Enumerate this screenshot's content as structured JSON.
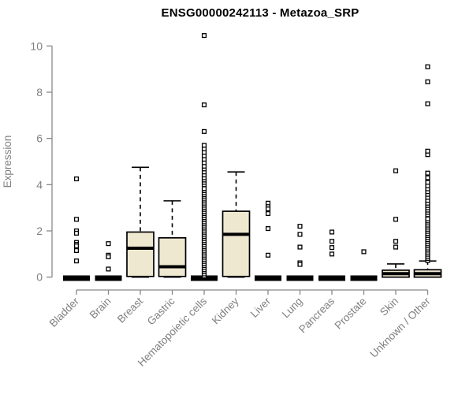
{
  "title": "ENSG00000242113 - Metazoa_SRP",
  "colors": {
    "background": "#ffffff",
    "box_fill": "#efe8d1",
    "box_stroke": "#000000",
    "median": "#000000",
    "axis": "#888888",
    "tick_label": "#808080",
    "title": "#000000"
  },
  "chart_data": {
    "type": "boxplot",
    "title": "ENSG00000242113 - Metazoa_SRP",
    "ylabel": "Expression",
    "xlabel": "",
    "ylim": [
      0,
      10
    ],
    "yticks": [
      0,
      2,
      4,
      6,
      8,
      10
    ],
    "grid": false,
    "legend": false,
    "marker": "open-square",
    "categories": [
      "Bladder",
      "Brain",
      "Breast",
      "Gastric",
      "Hematopoietic cells",
      "Kidney",
      "Liver",
      "Lung",
      "Pancreas",
      "Prostate",
      "Skin",
      "Unknown / Other"
    ],
    "series": [
      {
        "name": "Bladder",
        "collapsed": true,
        "q1": 0,
        "median": 0,
        "q3": 0,
        "whisker_low": 0,
        "whisker_high": 0,
        "outliers": [
          4.25,
          2.5,
          2.0,
          1.9,
          1.5,
          1.42,
          1.35,
          1.15,
          0.7
        ],
        "outlier_dense_range": null
      },
      {
        "name": "Brain",
        "collapsed": true,
        "q1": 0,
        "median": 0,
        "q3": 0,
        "whisker_low": 0,
        "whisker_high": 0,
        "outliers": [
          1.45,
          0.95,
          0.88,
          0.35
        ],
        "outlier_dense_range": null
      },
      {
        "name": "Breast",
        "collapsed": false,
        "q1": 0.03,
        "median": 1.25,
        "q3": 1.95,
        "whisker_low": 0,
        "whisker_high": 4.75,
        "outliers": [],
        "outlier_dense_range": null
      },
      {
        "name": "Gastric",
        "collapsed": false,
        "q1": 0.03,
        "median": 0.45,
        "q3": 1.7,
        "whisker_low": 0,
        "whisker_high": 3.3,
        "outliers": [],
        "outlier_dense_range": null
      },
      {
        "name": "Hematopoietic cells",
        "collapsed": true,
        "q1": 0,
        "median": 0,
        "q3": 0,
        "whisker_low": 0,
        "whisker_high": 0,
        "outliers": [
          4.0,
          4.1,
          4.2,
          4.3,
          4.42,
          4.55,
          4.68,
          4.8,
          4.95,
          5.1,
          5.25,
          5.4,
          5.55,
          5.7,
          6.3,
          7.45,
          10.45
        ],
        "outlier_dense_range": [
          0.05,
          3.9
        ]
      },
      {
        "name": "Kidney",
        "collapsed": false,
        "q1": 0.03,
        "median": 1.85,
        "q3": 2.85,
        "whisker_low": 0,
        "whisker_high": 4.55,
        "outliers": [],
        "outlier_dense_range": null
      },
      {
        "name": "Liver",
        "collapsed": true,
        "q1": 0,
        "median": 0,
        "q3": 0,
        "whisker_low": 0,
        "whisker_high": 0,
        "outliers": [
          3.2,
          3.05,
          2.95,
          2.75,
          2.1,
          0.95
        ],
        "outlier_dense_range": null
      },
      {
        "name": "Lung",
        "collapsed": true,
        "q1": 0,
        "median": 0,
        "q3": 0,
        "whisker_low": 0,
        "whisker_high": 0,
        "outliers": [
          2.2,
          1.85,
          1.3,
          0.62,
          0.55
        ],
        "outlier_dense_range": null
      },
      {
        "name": "Pancreas",
        "collapsed": true,
        "q1": 0,
        "median": 0,
        "q3": 0,
        "whisker_low": 0,
        "whisker_high": 0,
        "outliers": [
          1.95,
          1.55,
          1.28,
          1.0
        ],
        "outlier_dense_range": null
      },
      {
        "name": "Prostate",
        "collapsed": true,
        "q1": 0,
        "median": 0,
        "q3": 0,
        "whisker_low": 0,
        "whisker_high": 0,
        "outliers": [
          1.1
        ],
        "outlier_dense_range": null
      },
      {
        "name": "Skin",
        "collapsed": false,
        "q1": 0,
        "median": 0.15,
        "q3": 0.3,
        "whisker_low": 0,
        "whisker_high": 0.57,
        "outliers": [
          4.6,
          2.5,
          1.55,
          1.3
        ],
        "outlier_dense_range": null
      },
      {
        "name": "Unknown / Other",
        "collapsed": false,
        "q1": 0,
        "median": 0.15,
        "q3": 0.32,
        "whisker_low": 0,
        "whisker_high": 0.7,
        "outliers": [
          2.7,
          2.8,
          2.9,
          3.0,
          3.1,
          3.2,
          3.32,
          3.45,
          3.58,
          3.7,
          3.82,
          3.95,
          4.1,
          4.3,
          4.5,
          5.3,
          5.45,
          7.5,
          8.45,
          9.1
        ],
        "outlier_dense_range": [
          0.72,
          2.6
        ]
      }
    ]
  }
}
